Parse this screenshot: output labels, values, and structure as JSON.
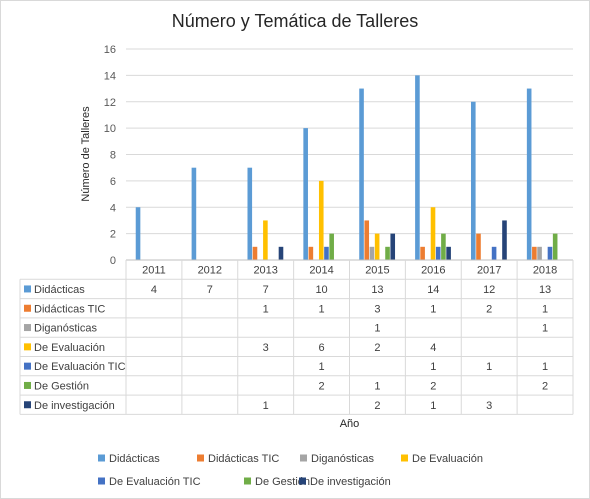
{
  "chart_data": {
    "type": "bar",
    "title": "Número y Temática de Talleres",
    "xlabel": "Año",
    "ylabel": "Número de Talleres",
    "ylim": [
      0,
      16
    ],
    "yticks": [
      "0",
      "2",
      "4",
      "6",
      "8",
      "10",
      "12",
      "14",
      "16"
    ],
    "grid": "horizontal",
    "legend": "bottom",
    "data_table": true,
    "categories": [
      "2011",
      "2012",
      "2013",
      "2014",
      "2015",
      "2016",
      "2017",
      "2018"
    ],
    "series": [
      {
        "name": "Didácticas",
        "color": "#5b9bd5",
        "values": [
          4,
          7,
          7,
          10,
          13,
          14,
          12,
          13
        ]
      },
      {
        "name": "Didácticas TIC",
        "color": "#ed7d31",
        "values": [
          null,
          null,
          1,
          1,
          3,
          1,
          2,
          1
        ]
      },
      {
        "name": "Diganósticas",
        "color": "#a5a5a5",
        "values": [
          null,
          null,
          null,
          null,
          1,
          null,
          null,
          1
        ]
      },
      {
        "name": "De Evaluación",
        "color": "#ffc000",
        "values": [
          null,
          null,
          3,
          6,
          2,
          4,
          null,
          null
        ]
      },
      {
        "name": "De Evaluación TIC",
        "color": "#4472c4",
        "values": [
          null,
          null,
          null,
          1,
          null,
          1,
          1,
          1
        ]
      },
      {
        "name": "De Gestión",
        "color": "#70ad47",
        "values": [
          null,
          null,
          null,
          2,
          1,
          2,
          null,
          2
        ]
      },
      {
        "name": "De investigación",
        "color": "#264478",
        "values": [
          null,
          null,
          1,
          null,
          2,
          1,
          3,
          null
        ]
      }
    ]
  }
}
